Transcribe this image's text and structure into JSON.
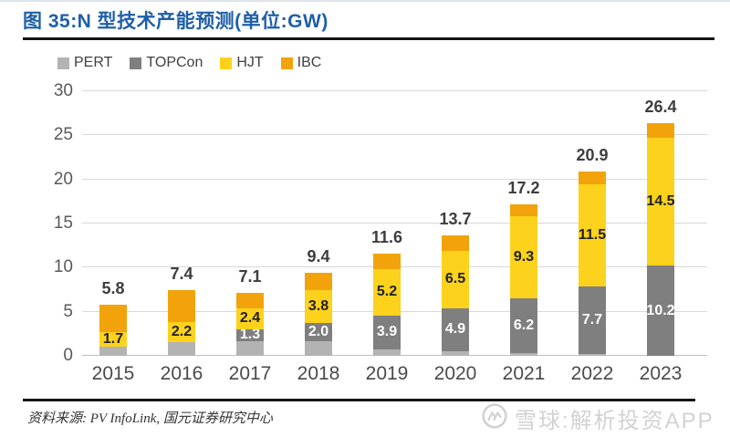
{
  "header": {
    "title": "图 35:N 型技术产能预测(单位:GW)"
  },
  "legend": {
    "items": [
      {
        "label": "PERT",
        "color": "#b3b3b3"
      },
      {
        "label": "TOPCon",
        "color": "#7f7f7f"
      },
      {
        "label": "HJT",
        "color": "#fcd21c"
      },
      {
        "label": "IBC",
        "color": "#f2a30b"
      }
    ]
  },
  "chart_data": {
    "type": "bar",
    "stacked": true,
    "title": "N 型技术产能预测",
    "unit": "GW",
    "categories": [
      "2015",
      "2016",
      "2017",
      "2018",
      "2019",
      "2020",
      "2021",
      "2022",
      "2023"
    ],
    "series": [
      {
        "name": "PERT",
        "color": "#b3b3b3",
        "values": [
          1.0,
          1.6,
          1.7,
          1.7,
          0.7,
          0.5,
          0.3,
          0.2,
          0.0
        ]
      },
      {
        "name": "TOPCon",
        "color": "#7f7f7f",
        "values": [
          0.0,
          0.0,
          1.3,
          2.0,
          3.9,
          4.9,
          6.2,
          7.7,
          10.2
        ]
      },
      {
        "name": "HJT",
        "color": "#fcd21c",
        "values": [
          1.7,
          2.2,
          2.4,
          3.8,
          5.2,
          6.5,
          9.3,
          11.5,
          14.5
        ]
      },
      {
        "name": "IBC",
        "color": "#f2a30b",
        "values": [
          3.1,
          3.6,
          1.7,
          1.9,
          1.8,
          1.8,
          1.4,
          1.5,
          1.7
        ]
      }
    ],
    "totals": [
      "5.8",
      "7.4",
      "7.1",
      "9.4",
      "11.6",
      "13.7",
      "17.2",
      "20.9",
      "26.4"
    ],
    "segment_labels": {
      "TOPCon": [
        null,
        null,
        "1.3",
        "2.0",
        "3.9",
        "4.9",
        "6.2",
        "7.7",
        "10.2"
      ],
      "HJT": [
        "1.7",
        "2.2",
        "2.4",
        "3.8",
        "5.2",
        "6.5",
        "9.3",
        "11.5",
        "14.5"
      ]
    },
    "segment_label_colors": {
      "TOPCon": "#ffffff",
      "HJT": "#1f1f1f"
    },
    "ylim": [
      0,
      30
    ],
    "ytick_step": 5,
    "grid": true,
    "legend_position": "top-left"
  },
  "footer": {
    "source": "资料来源: PV InfoLink, 国元证券研究中心"
  },
  "watermark": {
    "logo": "xueqiu-snowball-icon",
    "text": "雪球:解析投资APP"
  }
}
